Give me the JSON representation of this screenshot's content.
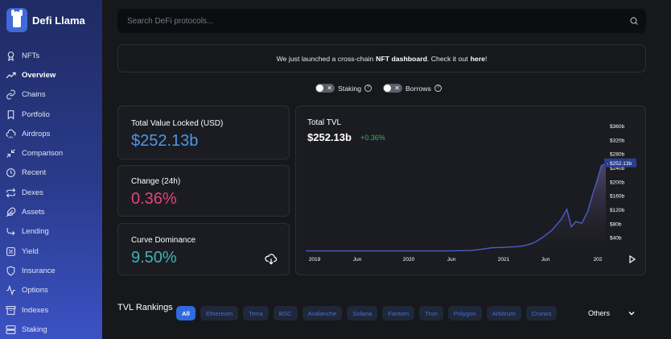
{
  "app": {
    "name": "Defi Llama"
  },
  "sidebar": {
    "items": [
      {
        "label": "NFTs",
        "icon": "nft-icon"
      },
      {
        "label": "Overview",
        "icon": "trending-up-icon",
        "active": true
      },
      {
        "label": "Chains",
        "icon": "link-icon"
      },
      {
        "label": "Portfolio",
        "icon": "bookmark-icon"
      },
      {
        "label": "Airdrops",
        "icon": "cloud-rain-icon"
      },
      {
        "label": "Comparison",
        "icon": "shrink-icon"
      },
      {
        "label": "Recent",
        "icon": "clock-icon"
      },
      {
        "label": "Dexes",
        "icon": "repeat-icon"
      },
      {
        "label": "Assets",
        "icon": "feather-icon"
      },
      {
        "label": "Lending",
        "icon": "lending-icon"
      },
      {
        "label": "Yield",
        "icon": "percent-icon"
      },
      {
        "label": "Insurance",
        "icon": "shield-icon"
      },
      {
        "label": "Options",
        "icon": "activity-icon"
      },
      {
        "label": "Indexes",
        "icon": "archive-icon"
      },
      {
        "label": "Staking",
        "icon": "server-icon"
      }
    ]
  },
  "search": {
    "placeholder": "Search DeFi protocols..."
  },
  "banner": {
    "prefix": "We just launched a cross-chain",
    "bold": "NFT dashboard",
    "middle": ". Check it out",
    "link": "here",
    "suffix": "!"
  },
  "toggles": {
    "staking": "Staking",
    "borrows": "Borrows"
  },
  "stats": {
    "tvl": {
      "label": "Total Value Locked (USD)",
      "value": "$252.13b"
    },
    "change": {
      "label": "Change (24h)",
      "value": "0.36%"
    },
    "dominance": {
      "label": "Curve Dominance",
      "value": "9.50%"
    }
  },
  "chart": {
    "title": "Total TVL",
    "value": "$252.13b",
    "change": "+0.36%",
    "current_label": "$252.13b"
  },
  "chart_data": {
    "type": "area",
    "y_ticks": [
      "$40b",
      "$80b",
      "$120b",
      "$160b",
      "$200b",
      "$240b",
      "$280b",
      "$320b",
      "$360b"
    ],
    "x_ticks": [
      "2019",
      "Jun",
      "2020",
      "Jun",
      "2021",
      "Jun",
      "202"
    ],
    "ylim": [
      0,
      360
    ],
    "x": [
      "2018-11",
      "2019-01",
      "2019-04",
      "2019-07",
      "2019-10",
      "2020-01",
      "2020-03",
      "2020-05",
      "2020-07",
      "2020-08",
      "2020-09",
      "2020-10",
      "2020-11",
      "2020-12",
      "2021-01",
      "2021-02",
      "2021-03",
      "2021-04",
      "2021-05",
      "2021-05b",
      "2021-06",
      "2021-07",
      "2021-08",
      "2021-09",
      "2021-10",
      "2021-11",
      "2021-12"
    ],
    "values": [
      1,
      1,
      1,
      1,
      1,
      1,
      1,
      1,
      2,
      5,
      10,
      11,
      13,
      16,
      24,
      40,
      60,
      90,
      120,
      70,
      85,
      80,
      115,
      160,
      200,
      245,
      252
    ],
    "current_value": 252.13,
    "grid": false
  },
  "rankings": {
    "title": "TVL Rankings",
    "chains": [
      "All",
      "Ethereum",
      "Terra",
      "BSC",
      "Avalanche",
      "Solana",
      "Fantom",
      "Tron",
      "Polygon",
      "Arbitrum",
      "Cronos"
    ],
    "others": "Others"
  }
}
